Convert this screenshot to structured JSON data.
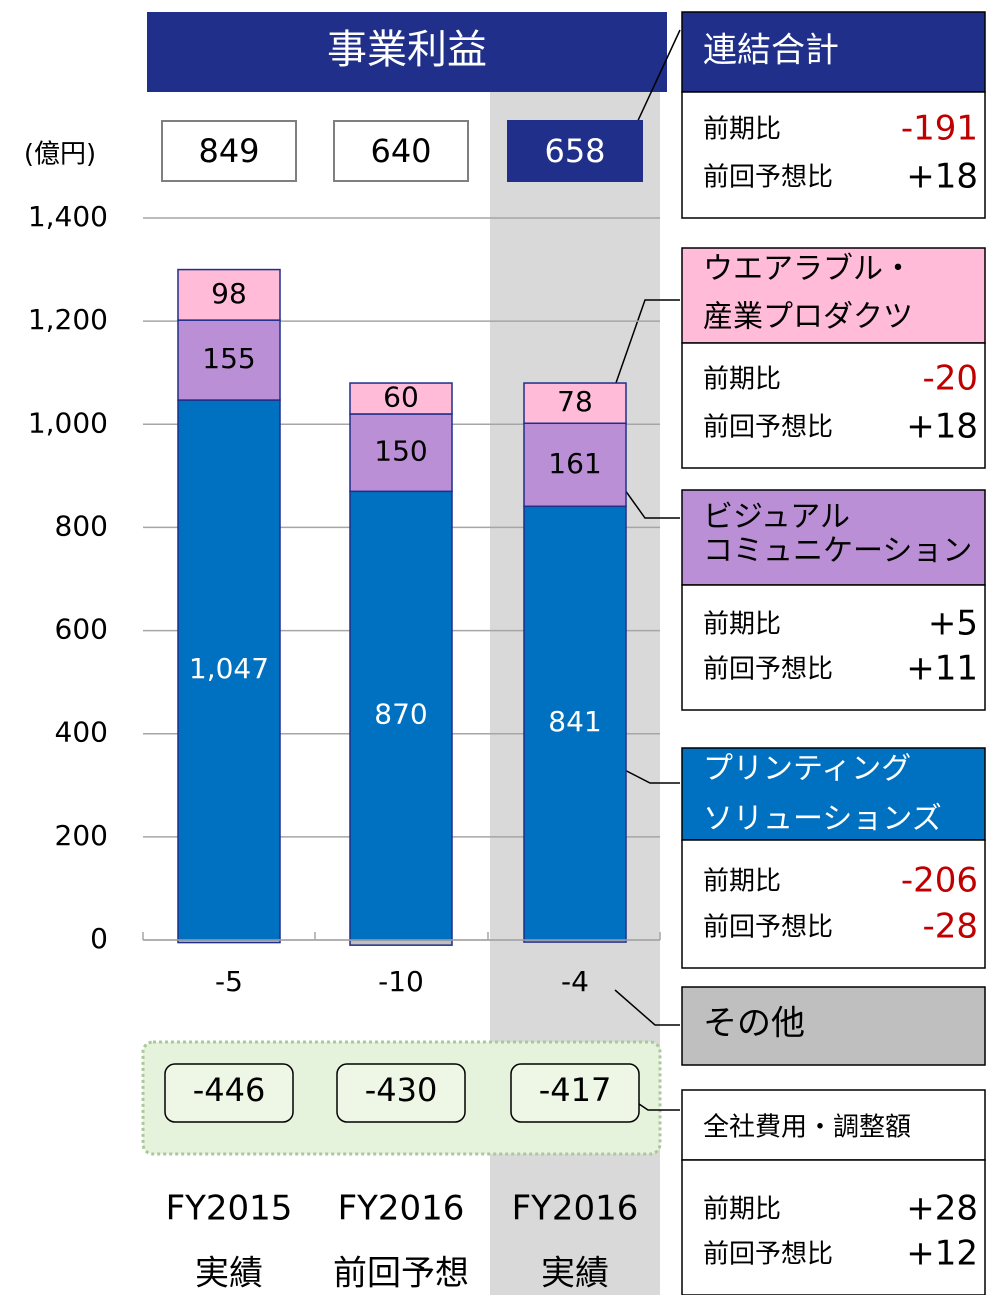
{
  "chart_data": {
    "type": "stacked_bar",
    "title": "事業利益",
    "unit": "(億円)",
    "categories": [
      [
        "FY2015",
        "実績"
      ],
      [
        "FY2016",
        "前回予想"
      ],
      [
        "FY2016",
        "実績"
      ]
    ],
    "totals": {
      "values": [
        849,
        640,
        658
      ],
      "colors": [
        "#ffffff",
        "#ffffff",
        "#1f2f8a"
      ]
    },
    "series": [
      {
        "name": "プリンティングソリューションズ",
        "color": "#0070c0",
        "values": [
          1047,
          870,
          841
        ],
        "value_labels": [
          "1,047",
          "870",
          "841"
        ]
      },
      {
        "name": "ビジュアルコミュニケーション",
        "color": "#bb8fd6",
        "values": [
          155,
          150,
          161
        ]
      },
      {
        "name": "ウエアラブル・産業プロダクツ",
        "color": "#ffbbd8",
        "values": [
          98,
          60,
          78
        ]
      },
      {
        "name": "その他",
        "color": "#bfbfbf",
        "values": [
          -5,
          -10,
          -4
        ]
      }
    ],
    "corporate_costs": {
      "values": [
        -446,
        -430,
        -417
      ]
    },
    "ylim": [
      0,
      1400
    ],
    "yticks": [
      0,
      200,
      400,
      600,
      800,
      {
        "value": 1000,
        "label": "1,000"
      },
      {
        "value": 1200,
        "label": "1,200"
      },
      {
        "value": 1400,
        "label": "1,400"
      }
    ],
    "grid": true
  },
  "panels": [
    {
      "title": [
        "連結合計"
      ],
      "bg": "#1f2f8a",
      "fg": "#ffffff",
      "items": [
        {
          "label": "前期比",
          "value": "-191"
        },
        {
          "label": "前回予想比",
          "value": "+18"
        }
      ]
    },
    {
      "title": [
        "ウエアラブル・",
        "産業プロダクツ"
      ],
      "bg": "#ffbbd8",
      "fg": "#000000",
      "items": [
        {
          "label": "前期比",
          "value": "-20"
        },
        {
          "label": "前回予想比",
          "value": "+18"
        }
      ]
    },
    {
      "title": [
        "ビジュアル",
        "コミュニケーション"
      ],
      "bg": "#bb8fd6",
      "fg": "#000000",
      "items": [
        {
          "label": "前期比",
          "value": "+5"
        },
        {
          "label": "前回予想比",
          "value": "+11"
        }
      ]
    },
    {
      "title": [
        "プリンティング",
        "ソリューションズ"
      ],
      "bg": "#0070c0",
      "fg": "#ffffff",
      "items": [
        {
          "label": "前期比",
          "value": "-206"
        },
        {
          "label": "前回予想比",
          "value": "-28"
        }
      ]
    },
    {
      "title": [
        "その他"
      ],
      "bg": "#bfbfbf",
      "fg": "#000000",
      "items": []
    },
    {
      "title": [
        "全社費用・調整額"
      ],
      "bg": "#ffffff",
      "fg": "#000000",
      "items": [
        {
          "label": "前期比",
          "value": "+28"
        },
        {
          "label": "前回予想比",
          "value": "+12"
        }
      ]
    }
  ]
}
